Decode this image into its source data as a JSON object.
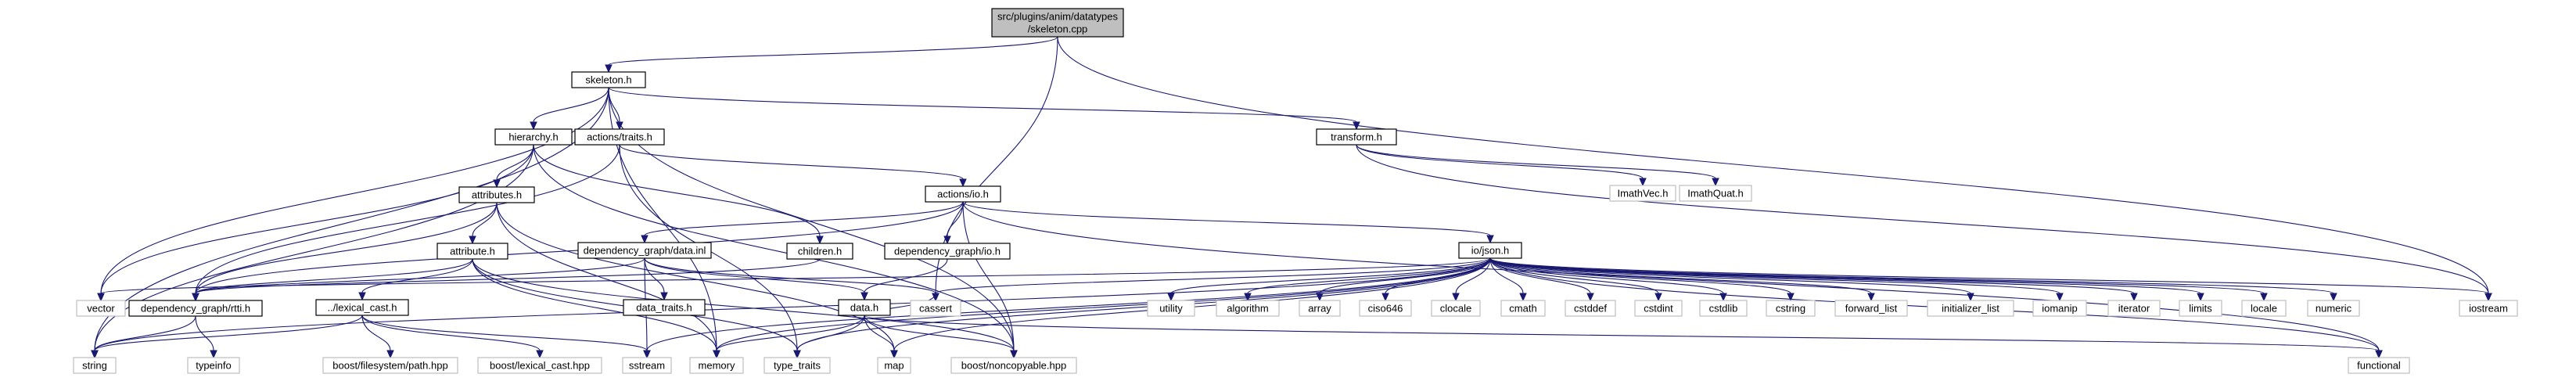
{
  "graph": {
    "colors": {
      "edge": "#191970",
      "root_fill": "#bfbfbf",
      "doc_border": "#000000",
      "ext_border": "#bfbfbf"
    },
    "nodes": [
      {
        "id": "root",
        "lines": [
          "src/plugins/anim/datatypes",
          "/skeleton.cpp"
        ],
        "kind": "root"
      },
      {
        "id": "skeleton_h",
        "lines": [
          "skeleton.h"
        ],
        "kind": "doc"
      },
      {
        "id": "hierarchy_h",
        "lines": [
          "hierarchy.h"
        ],
        "kind": "doc"
      },
      {
        "id": "actions_traits_h",
        "lines": [
          "actions/traits.h"
        ],
        "kind": "doc"
      },
      {
        "id": "transform_h",
        "lines": [
          "transform.h"
        ],
        "kind": "doc"
      },
      {
        "id": "attributes_h",
        "lines": [
          "attributes.h"
        ],
        "kind": "doc"
      },
      {
        "id": "actions_io_h",
        "lines": [
          "actions/io.h"
        ],
        "kind": "doc"
      },
      {
        "id": "imathvec_h",
        "lines": [
          "ImathVec.h"
        ],
        "kind": "ext"
      },
      {
        "id": "imathquat_h",
        "lines": [
          "ImathQuat.h"
        ],
        "kind": "ext"
      },
      {
        "id": "attribute_h",
        "lines": [
          "attribute.h"
        ],
        "kind": "doc"
      },
      {
        "id": "dep_graph_data_inl",
        "lines": [
          "dependency_graph/data.inl"
        ],
        "kind": "doc"
      },
      {
        "id": "children_h",
        "lines": [
          "children.h"
        ],
        "kind": "doc"
      },
      {
        "id": "dep_graph_io_h",
        "lines": [
          "dependency_graph/io.h"
        ],
        "kind": "doc"
      },
      {
        "id": "io_json_h",
        "lines": [
          "io/json.h"
        ],
        "kind": "doc"
      },
      {
        "id": "lexical_cast_h",
        "lines": [
          "../lexical_cast.h"
        ],
        "kind": "doc"
      },
      {
        "id": "vector",
        "lines": [
          "vector"
        ],
        "kind": "ext"
      },
      {
        "id": "dep_graph_rtti_h",
        "lines": [
          "dependency_graph/rtti.h"
        ],
        "kind": "doc"
      },
      {
        "id": "data_traits_h",
        "lines": [
          "data_traits.h"
        ],
        "kind": "doc"
      },
      {
        "id": "data_h",
        "lines": [
          "data.h"
        ],
        "kind": "doc"
      },
      {
        "id": "cassert",
        "lines": [
          "cassert"
        ],
        "kind": "ext"
      },
      {
        "id": "utility",
        "lines": [
          "utility"
        ],
        "kind": "ext"
      },
      {
        "id": "algorithm",
        "lines": [
          "algorithm"
        ],
        "kind": "ext"
      },
      {
        "id": "array",
        "lines": [
          "array"
        ],
        "kind": "ext"
      },
      {
        "id": "ciso646",
        "lines": [
          "ciso646"
        ],
        "kind": "ext"
      },
      {
        "id": "clocale",
        "lines": [
          "clocale"
        ],
        "kind": "ext"
      },
      {
        "id": "cmath",
        "lines": [
          "cmath"
        ],
        "kind": "ext"
      },
      {
        "id": "cstddef",
        "lines": [
          "cstddef"
        ],
        "kind": "ext"
      },
      {
        "id": "cstdint",
        "lines": [
          "cstdint"
        ],
        "kind": "ext"
      },
      {
        "id": "cstdlib",
        "lines": [
          "cstdlib"
        ],
        "kind": "ext"
      },
      {
        "id": "cstring",
        "lines": [
          "cstring"
        ],
        "kind": "ext"
      },
      {
        "id": "forward_list",
        "lines": [
          "forward_list"
        ],
        "kind": "ext"
      },
      {
        "id": "initializer_list",
        "lines": [
          "initializer_list"
        ],
        "kind": "ext"
      },
      {
        "id": "iomanip",
        "lines": [
          "iomanip"
        ],
        "kind": "ext"
      },
      {
        "id": "iterator",
        "lines": [
          "iterator"
        ],
        "kind": "ext"
      },
      {
        "id": "limits",
        "lines": [
          "limits"
        ],
        "kind": "ext"
      },
      {
        "id": "locale",
        "lines": [
          "locale"
        ],
        "kind": "ext"
      },
      {
        "id": "numeric",
        "lines": [
          "numeric"
        ],
        "kind": "ext"
      },
      {
        "id": "iostream",
        "lines": [
          "iostream"
        ],
        "kind": "ext"
      },
      {
        "id": "string",
        "lines": [
          "string"
        ],
        "kind": "ext"
      },
      {
        "id": "typeinfo",
        "lines": [
          "typeinfo"
        ],
        "kind": "ext"
      },
      {
        "id": "boost_fs_path",
        "lines": [
          "boost/filesystem/path.hpp"
        ],
        "kind": "ext"
      },
      {
        "id": "boost_lexical_cast",
        "lines": [
          "boost/lexical_cast.hpp"
        ],
        "kind": "ext"
      },
      {
        "id": "sstream",
        "lines": [
          "sstream"
        ],
        "kind": "ext"
      },
      {
        "id": "memory",
        "lines": [
          "memory"
        ],
        "kind": "ext"
      },
      {
        "id": "type_traits",
        "lines": [
          "type_traits"
        ],
        "kind": "ext"
      },
      {
        "id": "map",
        "lines": [
          "map"
        ],
        "kind": "ext"
      },
      {
        "id": "boost_noncopyable",
        "lines": [
          "boost/noncopyable.hpp"
        ],
        "kind": "ext"
      },
      {
        "id": "functional",
        "lines": [
          "functional"
        ],
        "kind": "ext"
      }
    ],
    "edges": [
      [
        "root",
        "skeleton_h"
      ],
      [
        "root",
        "cassert"
      ],
      [
        "root",
        "iostream"
      ],
      [
        "skeleton_h",
        "hierarchy_h"
      ],
      [
        "skeleton_h",
        "actions_traits_h"
      ],
      [
        "skeleton_h",
        "transform_h"
      ],
      [
        "skeleton_h",
        "vector"
      ],
      [
        "skeleton_h",
        "string"
      ],
      [
        "skeleton_h",
        "memory"
      ],
      [
        "skeleton_h",
        "boost_noncopyable"
      ],
      [
        "hierarchy_h",
        "attributes_h"
      ],
      [
        "hierarchy_h",
        "children_h"
      ],
      [
        "hierarchy_h",
        "vector"
      ],
      [
        "hierarchy_h",
        "string"
      ],
      [
        "hierarchy_h",
        "boost_noncopyable"
      ],
      [
        "actions_traits_h",
        "actions_io_h"
      ],
      [
        "actions_traits_h",
        "dep_graph_rtti_h"
      ],
      [
        "actions_traits_h",
        "type_traits"
      ],
      [
        "transform_h",
        "imathvec_h"
      ],
      [
        "transform_h",
        "imathquat_h"
      ],
      [
        "transform_h",
        "iostream"
      ],
      [
        "attributes_h",
        "attribute_h"
      ],
      [
        "attributes_h",
        "dep_graph_rtti_h"
      ],
      [
        "attributes_h",
        "memory"
      ],
      [
        "attributes_h",
        "map"
      ],
      [
        "actions_io_h",
        "dep_graph_data_inl"
      ],
      [
        "actions_io_h",
        "dep_graph_io_h"
      ],
      [
        "actions_io_h",
        "io_json_h"
      ],
      [
        "actions_io_h",
        "dep_graph_rtti_h"
      ],
      [
        "actions_io_h",
        "boost_noncopyable"
      ],
      [
        "actions_io_h",
        "functional"
      ],
      [
        "attribute_h",
        "lexical_cast_h"
      ],
      [
        "attribute_h",
        "dep_graph_rtti_h"
      ],
      [
        "attribute_h",
        "memory"
      ],
      [
        "attribute_h",
        "type_traits"
      ],
      [
        "attribute_h",
        "boost_noncopyable"
      ],
      [
        "dep_graph_data_inl",
        "data_traits_h"
      ],
      [
        "dep_graph_data_inl",
        "data_h"
      ],
      [
        "dep_graph_data_inl",
        "cassert"
      ],
      [
        "dep_graph_data_inl",
        "sstream"
      ],
      [
        "dep_graph_data_inl",
        "dep_graph_rtti_h"
      ],
      [
        "children_h",
        "dep_graph_rtti_h"
      ],
      [
        "dep_graph_io_h",
        "data_h"
      ],
      [
        "io_json_h",
        "utility"
      ],
      [
        "io_json_h",
        "algorithm"
      ],
      [
        "io_json_h",
        "array"
      ],
      [
        "io_json_h",
        "ciso646"
      ],
      [
        "io_json_h",
        "clocale"
      ],
      [
        "io_json_h",
        "cmath"
      ],
      [
        "io_json_h",
        "cstddef"
      ],
      [
        "io_json_h",
        "cstdint"
      ],
      [
        "io_json_h",
        "cstdlib"
      ],
      [
        "io_json_h",
        "cstring"
      ],
      [
        "io_json_h",
        "forward_list"
      ],
      [
        "io_json_h",
        "initializer_list"
      ],
      [
        "io_json_h",
        "iomanip"
      ],
      [
        "io_json_h",
        "iterator"
      ],
      [
        "io_json_h",
        "limits"
      ],
      [
        "io_json_h",
        "locale"
      ],
      [
        "io_json_h",
        "numeric"
      ],
      [
        "io_json_h",
        "iostream"
      ],
      [
        "io_json_h",
        "functional"
      ],
      [
        "io_json_h",
        "vector"
      ],
      [
        "io_json_h",
        "string"
      ],
      [
        "io_json_h",
        "memory"
      ],
      [
        "io_json_h",
        "type_traits"
      ],
      [
        "io_json_h",
        "map"
      ],
      [
        "io_json_h",
        "cassert"
      ],
      [
        "io_json_h",
        "sstream"
      ],
      [
        "lexical_cast_h",
        "string"
      ],
      [
        "lexical_cast_h",
        "boost_fs_path"
      ],
      [
        "lexical_cast_h",
        "boost_lexical_cast"
      ],
      [
        "lexical_cast_h",
        "sstream"
      ],
      [
        "dep_graph_rtti_h",
        "string"
      ],
      [
        "dep_graph_rtti_h",
        "typeinfo"
      ],
      [
        "data_h",
        "cassert"
      ],
      [
        "data_h",
        "memory"
      ],
      [
        "data_h",
        "type_traits"
      ],
      [
        "data_h",
        "map"
      ],
      [
        "data_h",
        "boost_noncopyable"
      ],
      [
        "data_h",
        "functional"
      ]
    ]
  }
}
